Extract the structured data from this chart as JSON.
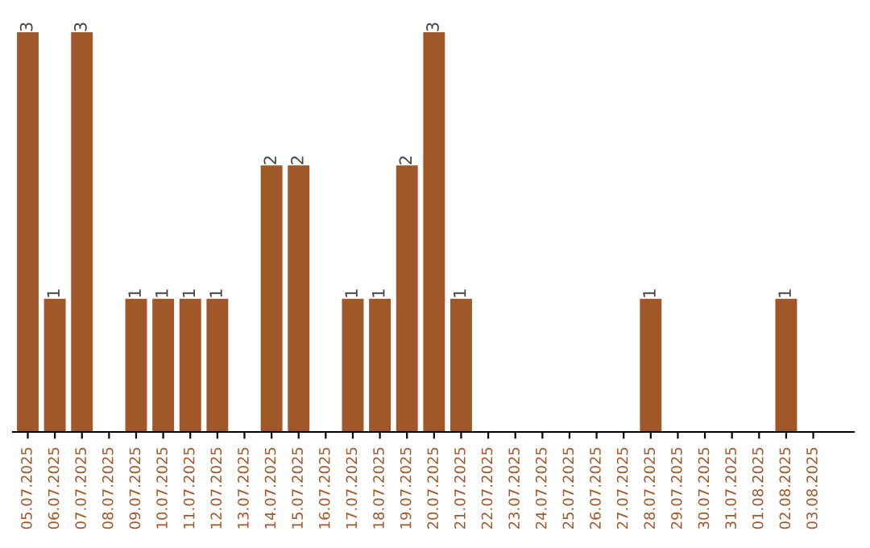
{
  "chart_data": {
    "type": "bar",
    "categories": [
      "05.07.2025",
      "06.07.2025",
      "07.07.2025",
      "08.07.2025",
      "09.07.2025",
      "10.07.2025",
      "11.07.2025",
      "12.07.2025",
      "13.07.2025",
      "14.07.2025",
      "15.07.2025",
      "16.07.2025",
      "17.07.2025",
      "18.07.2025",
      "19.07.2025",
      "20.07.2025",
      "21.07.2025",
      "22.07.2025",
      "23.07.2025",
      "24.07.2025",
      "25.07.2025",
      "26.07.2025",
      "27.07.2025",
      "28.07.2025",
      "29.07.2025",
      "30.07.2025",
      "31.07.2025",
      "01.08.2025",
      "02.08.2025",
      "03.08.2025"
    ],
    "values": [
      3,
      1,
      3,
      0,
      1,
      1,
      1,
      1,
      0,
      2,
      2,
      0,
      1,
      1,
      2,
      3,
      1,
      0,
      0,
      0,
      0,
      0,
      0,
      1,
      0,
      0,
      0,
      0,
      1,
      0
    ],
    "value_labels": [
      "3",
      "1",
      "3",
      null,
      "1",
      "1",
      "1",
      "1",
      null,
      "2",
      "2",
      null,
      "1",
      "1",
      "2",
      "3",
      "1",
      null,
      null,
      null,
      null,
      null,
      null,
      "1",
      null,
      null,
      null,
      null,
      "1",
      null
    ],
    "color": "#a0572a",
    "tick_labels": "x",
    "grid": false,
    "legend": false
  }
}
